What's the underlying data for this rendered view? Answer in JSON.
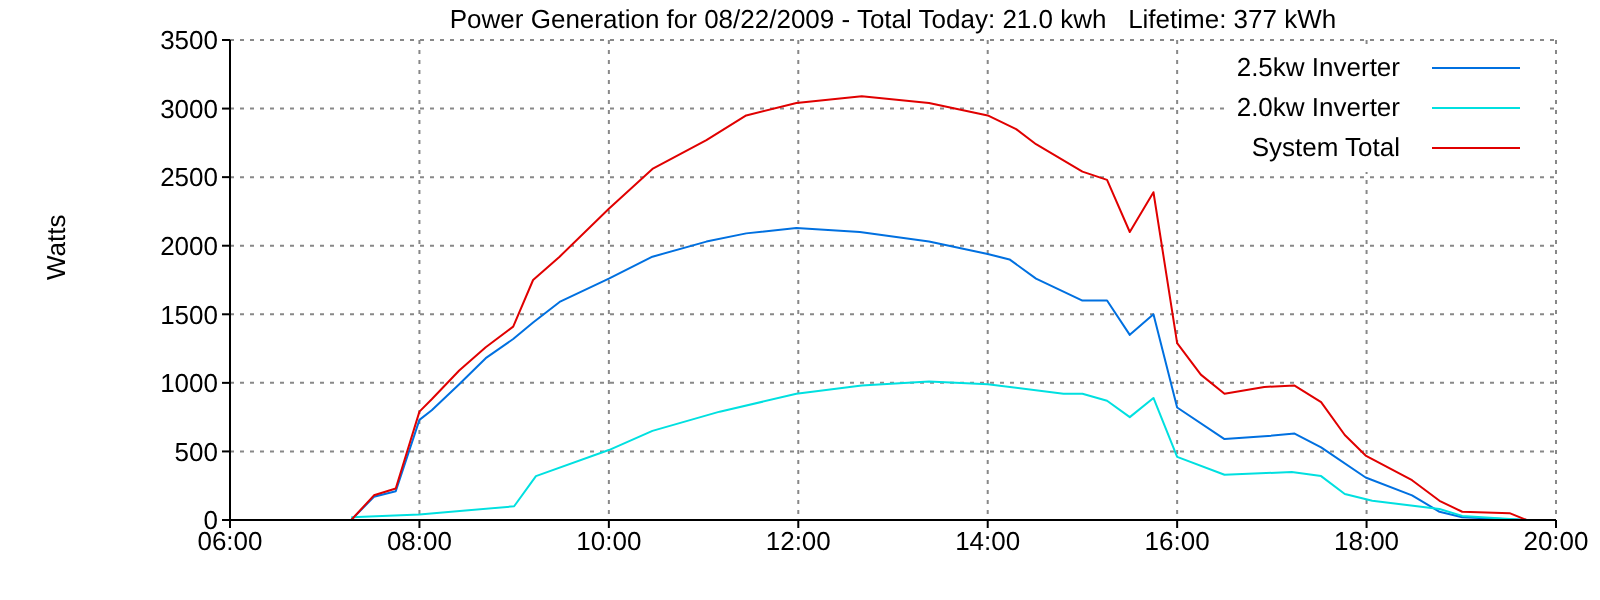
{
  "chart_data": {
    "type": "line",
    "title": "Power Generation for 08/22/2009 - Total Today: 21.0 kwh   Lifetime: 377 kWh",
    "ylabel": "Watts",
    "xlim": [
      6,
      20
    ],
    "xticks": [
      {
        "value": 6,
        "label": "06:00"
      },
      {
        "value": 8,
        "label": "08:00"
      },
      {
        "value": 10,
        "label": "10:00"
      },
      {
        "value": 12,
        "label": "12:00"
      },
      {
        "value": 14,
        "label": "14:00"
      },
      {
        "value": 16,
        "label": "16:00"
      },
      {
        "value": 18,
        "label": "18:00"
      },
      {
        "value": 20,
        "label": "20:00"
      }
    ],
    "ylim": [
      0,
      3500
    ],
    "yticks": [
      0,
      500,
      1000,
      1500,
      2000,
      2500,
      3000,
      3500
    ],
    "grid": true,
    "legend": "top right",
    "marker": "none",
    "line_style": "solid",
    "series": [
      {
        "name": "2.5kw Inverter",
        "color": "#0070e0",
        "x": [
          7.28,
          7.52,
          7.75,
          8.0,
          8.13,
          8.42,
          8.7,
          8.99,
          9.2,
          9.48,
          10.0,
          10.46,
          11.03,
          11.45,
          11.98,
          12.65,
          13.38,
          14.0,
          14.23,
          14.51,
          15.0,
          15.26,
          15.5,
          15.75,
          16.0,
          16.5,
          16.92,
          17.24,
          17.52,
          17.99,
          18.48,
          18.77,
          19.01,
          19.69
        ],
        "values": [
          0,
          170,
          210,
          730,
          800,
          990,
          1180,
          1320,
          1440,
          1590,
          1760,
          1920,
          2030,
          2090,
          2130,
          2100,
          2030,
          1940,
          1900,
          1760,
          1600,
          1600,
          1350,
          1500,
          820,
          590,
          610,
          630,
          530,
          310,
          180,
          60,
          20,
          0
        ]
      },
      {
        "name": "2.0kw Inverter",
        "color": "#00e0e0",
        "x": [
          7.28,
          8.0,
          9.0,
          9.23,
          10.0,
          10.46,
          11.17,
          11.98,
          12.67,
          13.38,
          14.0,
          14.8,
          15.0,
          15.26,
          15.5,
          15.75,
          16.0,
          16.5,
          17.21,
          17.52,
          17.77,
          18.06,
          18.77,
          19.01,
          19.69
        ],
        "values": [
          20,
          40,
          100,
          320,
          510,
          650,
          790,
          920,
          980,
          1010,
          990,
          920,
          920,
          870,
          750,
          890,
          460,
          330,
          350,
          320,
          190,
          140,
          80,
          30,
          0
        ]
      },
      {
        "name": "System Total",
        "color": "#e00000",
        "x": [
          7.28,
          7.52,
          7.75,
          8.0,
          8.13,
          8.42,
          8.7,
          8.99,
          9.2,
          9.48,
          10.0,
          10.46,
          11.03,
          11.45,
          11.98,
          12.67,
          13.38,
          14.0,
          14.3,
          14.51,
          15.0,
          15.26,
          15.5,
          15.75,
          16.0,
          16.25,
          16.5,
          16.92,
          17.24,
          17.52,
          17.77,
          17.99,
          18.48,
          18.77,
          19.01,
          19.51,
          19.69
        ],
        "values": [
          0,
          180,
          230,
          790,
          880,
          1090,
          1260,
          1410,
          1750,
          1920,
          2270,
          2560,
          2770,
          2950,
          3040,
          3090,
          3040,
          2950,
          2850,
          2740,
          2540,
          2480,
          2100,
          2390,
          1290,
          1060,
          920,
          970,
          980,
          860,
          620,
          470,
          290,
          140,
          60,
          50,
          0
        ]
      }
    ]
  }
}
